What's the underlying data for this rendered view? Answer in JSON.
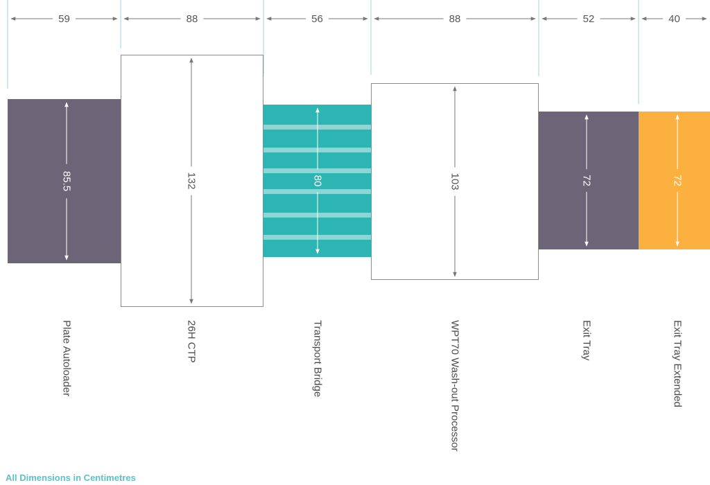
{
  "colors": {
    "dark_unit": "#6b6577",
    "transport": "#2cb5b2",
    "transport_stripe": "#8fd5d3",
    "extended": "#fbb040",
    "white_unit_border": "#8a8a8a",
    "divider": "#9fd6dc",
    "top_arrow": "#777777",
    "footnote": "#59c3c7"
  },
  "units": [
    {
      "id": "plate-autoloader",
      "name": "Plate Autoloader",
      "width": "59",
      "height": "85.5",
      "style": "dark"
    },
    {
      "id": "26h-ctp",
      "name": "26H CTP",
      "width": "88",
      "height": "132",
      "style": "white"
    },
    {
      "id": "transport-bridge",
      "name": "Transport Bridge",
      "width": "56",
      "height": "80",
      "style": "striped"
    },
    {
      "id": "wpt70-processor",
      "name": "WPT70 Wash-out Processor",
      "width": "88",
      "height": "103",
      "style": "white"
    },
    {
      "id": "exit-tray",
      "name": "Exit Tray",
      "width": "52",
      "height": "72",
      "style": "dark"
    },
    {
      "id": "exit-tray-extended",
      "name": "Exit Tray Extended",
      "width": "40",
      "height": "72",
      "style": "orange"
    }
  ],
  "footnote": "All Dimensions in Centimetres"
}
